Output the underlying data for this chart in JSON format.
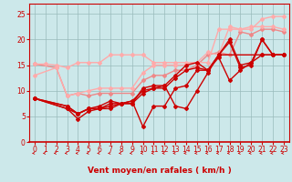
{
  "bg_color": "#cce8ea",
  "grid_color": "#99bbbb",
  "xlabel": "Vent moyen/en rafales ( km/h )",
  "xlim": [
    -0.5,
    23.5
  ],
  "ylim": [
    0,
    27
  ],
  "yticks": [
    0,
    5,
    10,
    15,
    20,
    25
  ],
  "xticks": [
    0,
    1,
    2,
    3,
    4,
    5,
    6,
    7,
    8,
    9,
    10,
    11,
    12,
    13,
    14,
    15,
    16,
    17,
    18,
    19,
    20,
    21,
    22,
    23
  ],
  "series": [
    {
      "x": [
        0,
        2,
        3,
        4,
        5,
        6,
        7,
        9,
        10,
        11,
        12,
        13,
        14,
        15,
        16,
        17,
        18,
        19,
        20,
        21,
        22,
        23
      ],
      "y": [
        15.2,
        14.5,
        9.0,
        9.5,
        9.0,
        9.5,
        9.5,
        9.5,
        12.0,
        13.0,
        13.0,
        14.0,
        14.0,
        15.0,
        17.0,
        17.5,
        17.0,
        21.5,
        21.0,
        22.0,
        22.0,
        21.5
      ],
      "color": "#ee8888",
      "lw": 1.0,
      "marker": "D",
      "ms": 2.0
    },
    {
      "x": [
        0,
        1,
        2,
        3,
        4,
        5,
        6,
        7,
        8,
        9,
        10,
        11,
        12,
        13,
        14,
        15,
        16,
        17,
        18,
        19,
        20,
        21,
        22,
        23
      ],
      "y": [
        15.2,
        15.2,
        15.0,
        14.5,
        15.5,
        15.5,
        15.5,
        17.0,
        17.0,
        17.0,
        17.0,
        15.5,
        15.5,
        15.5,
        15.5,
        15.5,
        15.5,
        22.0,
        22.0,
        22.0,
        22.0,
        24.0,
        24.5,
        24.5
      ],
      "color": "#ffaaaa",
      "lw": 1.0,
      "marker": "D",
      "ms": 2.0
    },
    {
      "x": [
        0,
        2,
        3,
        4,
        5,
        6,
        7,
        8,
        9,
        10,
        11,
        12,
        13,
        14,
        15,
        16,
        17,
        18,
        19,
        20,
        21,
        22,
        23
      ],
      "y": [
        13.0,
        14.5,
        9.0,
        9.5,
        10.0,
        10.5,
        10.5,
        10.5,
        10.5,
        13.5,
        15.0,
        15.0,
        15.0,
        15.0,
        15.5,
        17.5,
        17.0,
        22.5,
        22.0,
        22.5,
        22.5,
        22.5,
        22.0
      ],
      "color": "#ffaaaa",
      "lw": 1.0,
      "marker": "D",
      "ms": 2.0
    },
    {
      "x": [
        0,
        3,
        4,
        5,
        6,
        7,
        8,
        9,
        10,
        11,
        12,
        13,
        14,
        15,
        16,
        17,
        21,
        22,
        23
      ],
      "y": [
        8.5,
        7.0,
        5.5,
        6.5,
        6.5,
        7.5,
        7.5,
        7.5,
        10.5,
        11.0,
        11.0,
        13.0,
        15.0,
        15.5,
        14.0,
        17.0,
        17.0,
        17.0,
        17.0
      ],
      "color": "#cc0000",
      "lw": 1.0,
      "marker": "D",
      "ms": 2.0
    },
    {
      "x": [
        0,
        3,
        4,
        5,
        6,
        7,
        8,
        9,
        10,
        11,
        12,
        13,
        14,
        15,
        16,
        17,
        18,
        19,
        20,
        21,
        22,
        23
      ],
      "y": [
        8.5,
        6.5,
        4.5,
        6.0,
        6.5,
        6.5,
        7.5,
        8.0,
        10.0,
        10.5,
        10.5,
        12.5,
        14.0,
        14.5,
        14.0,
        16.5,
        12.0,
        14.0,
        15.5,
        17.0,
        17.0,
        17.0
      ],
      "color": "#cc0000",
      "lw": 1.0,
      "marker": "D",
      "ms": 2.0
    },
    {
      "x": [
        0,
        3,
        4,
        5,
        6,
        7,
        8,
        9,
        10,
        11,
        12,
        13,
        14,
        15,
        16,
        17,
        18,
        19,
        20,
        21,
        22,
        23
      ],
      "y": [
        8.5,
        6.5,
        5.5,
        6.5,
        6.5,
        7.0,
        7.5,
        7.5,
        9.5,
        10.5,
        11.0,
        7.0,
        6.5,
        10.0,
        13.5,
        17.0,
        19.5,
        14.5,
        15.0,
        20.0,
        17.0,
        17.0
      ],
      "color": "#cc0000",
      "lw": 1.0,
      "marker": "D",
      "ms": 2.0
    },
    {
      "x": [
        0,
        3,
        4,
        5,
        6,
        7,
        8,
        9,
        10,
        11,
        12,
        13,
        14,
        15,
        16,
        17,
        18,
        19,
        20,
        21,
        22,
        23
      ],
      "y": [
        8.5,
        7.0,
        5.5,
        6.5,
        7.0,
        8.0,
        7.5,
        8.0,
        3.0,
        7.0,
        7.0,
        10.5,
        11.0,
        14.0,
        14.0,
        17.0,
        20.0,
        15.0,
        15.5,
        20.0,
        17.0,
        17.0
      ],
      "color": "#cc0000",
      "lw": 1.0,
      "marker": "D",
      "ms": 2.0
    }
  ],
  "arrow_color": "#cc0000",
  "axis_label_fontsize": 6.5,
  "tick_fontsize": 5.5
}
